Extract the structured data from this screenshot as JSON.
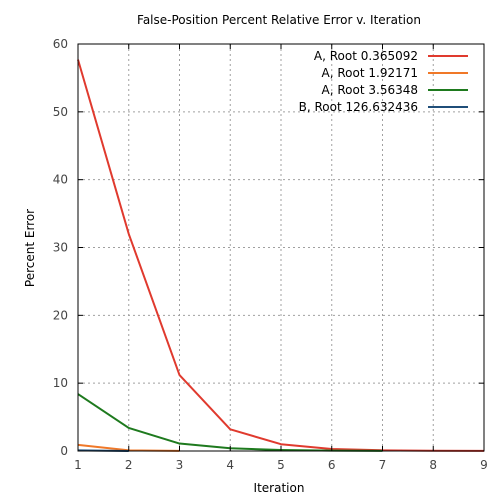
{
  "chart_data": {
    "type": "line",
    "title": "False-Position Percent Relative Error v. Iteration",
    "xlabel": "Iteration",
    "ylabel": "Percent Error",
    "xlim": [
      1,
      9
    ],
    "ylim": [
      0,
      60
    ],
    "xticks": [
      1,
      2,
      3,
      4,
      5,
      6,
      7,
      8,
      9
    ],
    "yticks": [
      0,
      10,
      20,
      30,
      40,
      50,
      60
    ],
    "grid": true,
    "legend_position": "top-right",
    "series": [
      {
        "name": "A, Root 0.365092",
        "color": "#e03a2e",
        "x": [
          1,
          2,
          3,
          4,
          5,
          6,
          7,
          8,
          9
        ],
        "values": [
          57.7,
          32.0,
          11.2,
          3.2,
          1.0,
          0.3,
          0.1,
          0.03,
          0.01
        ]
      },
      {
        "name": "A, Root 1.92171",
        "color": "#f07828",
        "x": [
          1,
          2,
          3
        ],
        "values": [
          0.9,
          0.1,
          0.01
        ]
      },
      {
        "name": "A, Root 3.56348",
        "color": "#1e7a1e",
        "x": [
          1,
          2,
          3,
          4,
          5,
          6,
          7
        ],
        "values": [
          8.4,
          3.4,
          1.1,
          0.4,
          0.15,
          0.05,
          0.02
        ]
      },
      {
        "name": "B, Root 126.632436",
        "color": "#1f4e79",
        "x": [
          1,
          2
        ],
        "values": [
          0.1,
          0.0
        ]
      }
    ]
  }
}
